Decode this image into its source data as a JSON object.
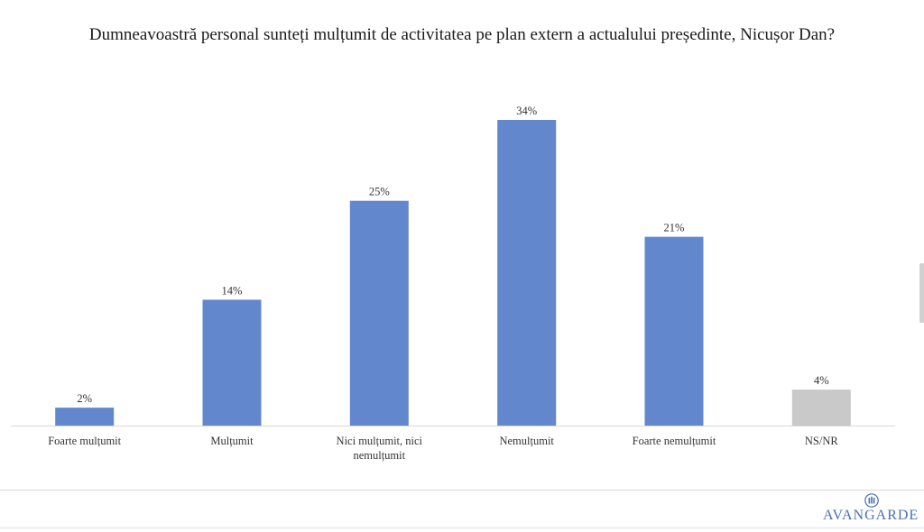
{
  "colors": {
    "bar_primary": "#6287cc",
    "bar_other": "#c9c9c9",
    "axis": "#d9d9d9"
  },
  "chart_data": {
    "type": "bar",
    "title": "Dumneavoastră personal sunteți mulțumit de activitatea pe plan extern a actualului președinte, Nicușor Dan?",
    "categories": [
      [
        "Foarte mulțumit"
      ],
      [
        "Mulțumit"
      ],
      [
        "Nici mulțumit, nici",
        "nemulțumit"
      ],
      [
        "Nemulțumit"
      ],
      [
        "Foarte nemulțumit"
      ],
      [
        "NS/NR"
      ]
    ],
    "values": [
      2,
      14,
      25,
      34,
      21,
      4
    ],
    "value_labels": [
      "2%",
      "14%",
      "25%",
      "34%",
      "21%",
      "4%"
    ],
    "bar_colors": [
      "#6287cc",
      "#6287cc",
      "#6287cc",
      "#6287cc",
      "#6287cc",
      "#c9c9c9"
    ],
    "ylim": [
      0,
      34
    ],
    "grid": false,
    "legend": "none"
  },
  "logo": {
    "text": "AVANGARDE",
    "icon": "building-columns-icon"
  }
}
